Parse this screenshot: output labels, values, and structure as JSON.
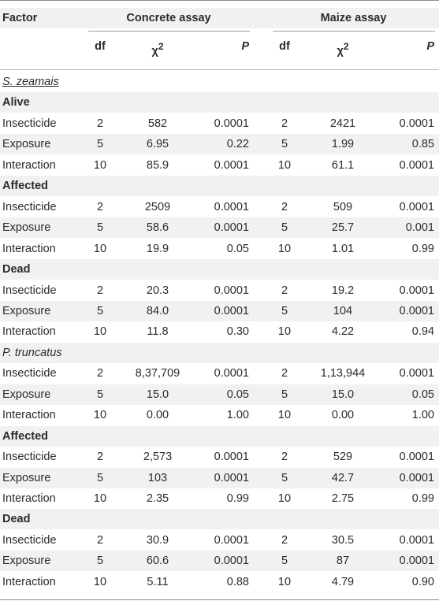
{
  "header": {
    "factor": "Factor",
    "concrete": "Concrete assay",
    "maize": "Maize assay",
    "df": "df",
    "chi": "χ",
    "chi_sup": "2",
    "p": "P"
  },
  "rows": [
    {
      "type": "species",
      "label": "S. zeamais"
    },
    {
      "type": "section",
      "label": "Alive"
    },
    {
      "type": "data",
      "factor": "Insecticide",
      "df1": "2",
      "chi1": "582",
      "p1": "0.0001",
      "df2": "2",
      "chi2": "2421",
      "p2": "0.0001"
    },
    {
      "type": "data",
      "factor": "Exposure",
      "df1": "5",
      "chi1": "6.95",
      "p1": "0.22",
      "df2": "5",
      "chi2": "1.99",
      "p2": "0.85"
    },
    {
      "type": "data",
      "factor": "Interaction",
      "df1": "10",
      "chi1": "85.9",
      "p1": "0.0001",
      "df2": "10",
      "chi2": "61.1",
      "p2": "0.0001"
    },
    {
      "type": "section",
      "label": "Affected"
    },
    {
      "type": "data",
      "factor": "Insecticide",
      "df1": "2",
      "chi1": "2509",
      "p1": "0.0001",
      "df2": "2",
      "chi2": "509",
      "p2": "0.0001"
    },
    {
      "type": "data",
      "factor": "Exposure",
      "df1": "5",
      "chi1": "58.6",
      "p1": "0.0001",
      "df2": "5",
      "chi2": "25.7",
      "p2": "0.001"
    },
    {
      "type": "data",
      "factor": "Interaction",
      "df1": "10",
      "chi1": "19.9",
      "p1": "0.05",
      "df2": "10",
      "chi2": "1.01",
      "p2": "0.99"
    },
    {
      "type": "section",
      "label": "Dead"
    },
    {
      "type": "data",
      "factor": "Insecticide",
      "df1": "2",
      "chi1": "20.3",
      "p1": "0.0001",
      "df2": "2",
      "chi2": "19.2",
      "p2": "0.0001"
    },
    {
      "type": "data",
      "factor": "Exposure",
      "df1": "5",
      "chi1": "84.0",
      "p1": "0.0001",
      "df2": "5",
      "chi2": "104",
      "p2": "0.0001"
    },
    {
      "type": "data",
      "factor": "Interaction",
      "df1": "10",
      "chi1": "11.8",
      "p1": "0.30",
      "df2": "10",
      "chi2": "4.22",
      "p2": "0.94"
    },
    {
      "type": "species",
      "label": "P. truncatus"
    },
    {
      "type": "data",
      "factor": "Insecticide",
      "df1": "2",
      "chi1": "8,37,709",
      "p1": "0.0001",
      "df2": "2",
      "chi2": "1,13,944",
      "p2": "0.0001"
    },
    {
      "type": "data",
      "factor": "Exposure",
      "df1": "5",
      "chi1": "15.0",
      "p1": "0.05",
      "df2": "5",
      "chi2": "15.0",
      "p2": "0.05"
    },
    {
      "type": "data",
      "factor": "Interaction",
      "df1": "10",
      "chi1": "0.00",
      "p1": "1.00",
      "df2": "10",
      "chi2": "0.00",
      "p2": "1.00"
    },
    {
      "type": "section",
      "label": "Affected"
    },
    {
      "type": "data",
      "factor": "Insecticide",
      "df1": "2",
      "chi1": "2,573",
      "p1": "0.0001",
      "df2": "2",
      "chi2": "529",
      "p2": "0.0001"
    },
    {
      "type": "data",
      "factor": "Exposure",
      "df1": "5",
      "chi1": "103",
      "p1": "0.0001",
      "df2": "5",
      "chi2": "42.7",
      "p2": "0.0001"
    },
    {
      "type": "data",
      "factor": "Interaction",
      "df1": "10",
      "chi1": "2.35",
      "p1": "0.99",
      "df2": "10",
      "chi2": "2.75",
      "p2": "0.99"
    },
    {
      "type": "section",
      "label": "Dead"
    },
    {
      "type": "data",
      "factor": "Insecticide",
      "df1": "2",
      "chi1": "30.9",
      "p1": "0.0001",
      "df2": "2",
      "chi2": "30.5",
      "p2": "0.0001"
    },
    {
      "type": "data",
      "factor": "Exposure",
      "df1": "5",
      "chi1": "60.6",
      "p1": "0.0001",
      "df2": "5",
      "chi2": "87",
      "p2": "0.0001"
    },
    {
      "type": "data",
      "factor": "Interaction",
      "df1": "10",
      "chi1": "5.11",
      "p1": "0.88",
      "df2": "10",
      "chi2": "4.79",
      "p2": "0.90"
    }
  ]
}
